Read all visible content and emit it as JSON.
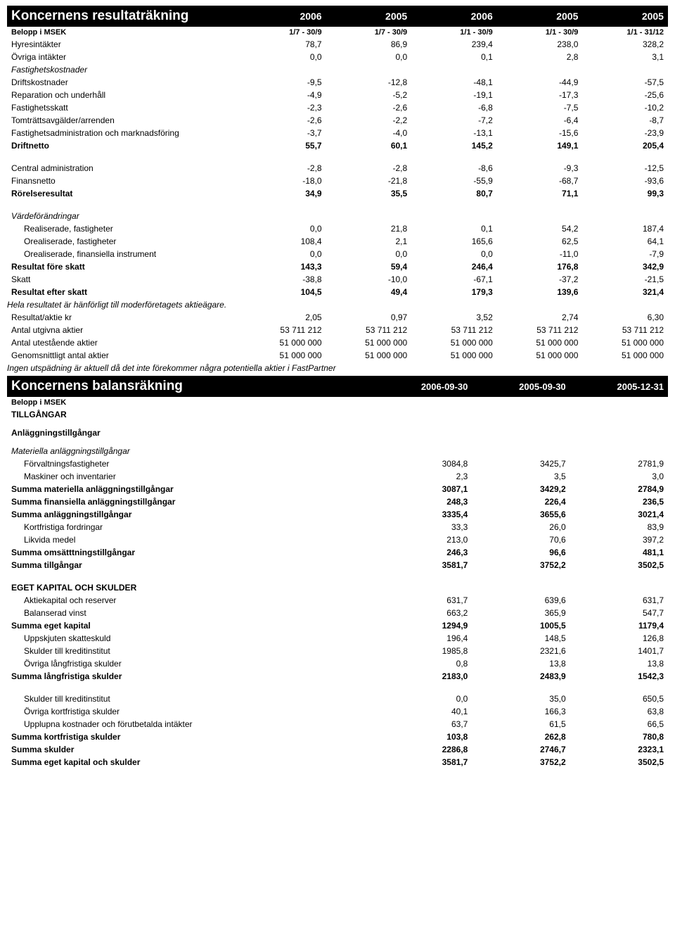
{
  "income": {
    "title": "Koncernens resultaträkning",
    "years": [
      "2006",
      "2005",
      "2006",
      "2005",
      "2005"
    ],
    "periods_label": "Belopp i MSEK",
    "periods": [
      "1/7 - 30/9",
      "1/7 - 30/9",
      "1/1 - 30/9",
      "1/1 - 30/9",
      "1/1 - 31/12"
    ],
    "rows": [
      {
        "label": "Hyresintäkter",
        "v": [
          "78,7",
          "86,9",
          "239,4",
          "238,0",
          "328,2"
        ]
      },
      {
        "label": "Övriga intäkter",
        "v": [
          "0,0",
          "0,0",
          "0,1",
          "2,8",
          "3,1"
        ]
      },
      {
        "label": "Fastighetskostnader",
        "italic": true
      },
      {
        "label": "Driftskostnader",
        "v": [
          "-9,5",
          "-12,8",
          "-48,1",
          "-44,9",
          "-57,5"
        ]
      },
      {
        "label": "Reparation och underhåll",
        "v": [
          "-4,9",
          "-5,2",
          "-19,1",
          "-17,3",
          "-25,6"
        ]
      },
      {
        "label": "Fastighetsskatt",
        "v": [
          "-2,3",
          "-2,6",
          "-6,8",
          "-7,5",
          "-10,2"
        ]
      },
      {
        "label": "Tomträttsavgälder/arrenden",
        "v": [
          "-2,6",
          "-2,2",
          "-7,2",
          "-6,4",
          "-8,7"
        ]
      },
      {
        "label": "Fastighetsadministration och marknadsföring",
        "v": [
          "-3,7",
          "-4,0",
          "-13,1",
          "-15,6",
          "-23,9"
        ]
      },
      {
        "label": "Driftnetto",
        "bold": true,
        "v": [
          "55,7",
          "60,1",
          "145,2",
          "149,1",
          "205,4"
        ]
      },
      {
        "spacer": true
      },
      {
        "label": "Central administration",
        "v": [
          "-2,8",
          "-2,8",
          "-8,6",
          "-9,3",
          "-12,5"
        ]
      },
      {
        "label": "Finansnetto",
        "v": [
          "-18,0",
          "-21,8",
          "-55,9",
          "-68,7",
          "-93,6"
        ]
      },
      {
        "label": "Rörelseresultat",
        "bold": true,
        "v": [
          "34,9",
          "35,5",
          "80,7",
          "71,1",
          "99,3"
        ]
      },
      {
        "spacer": true
      },
      {
        "label": "Värdeförändringar",
        "italic": true
      },
      {
        "label": "Realiserade, fastigheter",
        "indent": true,
        "v": [
          "0,0",
          "21,8",
          "0,1",
          "54,2",
          "187,4"
        ]
      },
      {
        "label": "Orealiserade, fastigheter",
        "indent": true,
        "v": [
          "108,4",
          "2,1",
          "165,6",
          "62,5",
          "64,1"
        ]
      },
      {
        "label": "Orealiserade, finansiella instrument",
        "indent": true,
        "v": [
          "0,0",
          "0,0",
          "0,0",
          "-11,0",
          "-7,9"
        ]
      },
      {
        "label": "Resultat före skatt",
        "bold": true,
        "v": [
          "143,3",
          "59,4",
          "246,4",
          "176,8",
          "342,9"
        ]
      },
      {
        "label": "Skatt",
        "v": [
          "-38,8",
          "-10,0",
          "-67,1",
          "-37,2",
          "-21,5"
        ]
      },
      {
        "label": "Resultat efter skatt",
        "bold": true,
        "v": [
          "104,5",
          "49,4",
          "179,3",
          "139,6",
          "321,4"
        ]
      }
    ],
    "footnote1": "Hela resultatet är hänförligt till moderföretagets aktieägare.",
    "rows2": [
      {
        "label": "Resultat/aktie kr",
        "v": [
          "2,05",
          "0,97",
          "3,52",
          "2,74",
          "6,30"
        ]
      },
      {
        "label": "Antal utgivna aktier",
        "v": [
          "53 711 212",
          "53 711 212",
          "53 711 212",
          "53 711 212",
          "53 711 212"
        ]
      },
      {
        "label": "Antal utestående aktier",
        "v": [
          "51 000 000",
          "51 000 000",
          "51 000 000",
          "51 000 000",
          "51 000 000"
        ]
      },
      {
        "label": "Genomsnittligt antal aktier",
        "v": [
          "51 000 000",
          "51 000 000",
          "51 000 000",
          "51 000 000",
          "51 000 000"
        ]
      }
    ],
    "footnote2": "Ingen utspädning är aktuell då det inte förekommer några potentiella aktier i FastPartner"
  },
  "balance": {
    "title": "Koncernens balansräkning",
    "dates": [
      "2006-09-30",
      "2005-09-30",
      "2005-12-31"
    ],
    "sub_label": "Belopp i MSEK",
    "rows": [
      {
        "label": "TILLGÅNGAR",
        "bold": true
      },
      {
        "spacer_small": true
      },
      {
        "label": "Anläggningstillgångar",
        "bold": true
      },
      {
        "spacer_small": true
      },
      {
        "label": "Materiella anläggningstillgångar",
        "italic": true
      },
      {
        "label": "Förvaltningsfastigheter",
        "indent": true,
        "v": [
          "3084,8",
          "3425,7",
          "2781,9"
        ]
      },
      {
        "label": "Maskiner och inventarier",
        "indent": true,
        "v": [
          "2,3",
          "3,5",
          "3,0"
        ]
      },
      {
        "label": "Summa materiella anläggningstillgångar",
        "bold": true,
        "v": [
          "3087,1",
          "3429,2",
          "2784,9"
        ]
      },
      {
        "label": "Summa finansiella anläggningstillgångar",
        "bold": true,
        "v": [
          "248,3",
          "226,4",
          "236,5"
        ]
      },
      {
        "label": "Summa anläggningstillgångar",
        "bold": true,
        "v": [
          "3335,4",
          "3655,6",
          "3021,4"
        ]
      },
      {
        "label": "Kortfristiga fordringar",
        "indent": true,
        "v": [
          "33,3",
          "26,0",
          "83,9"
        ]
      },
      {
        "label": "Likvida medel",
        "indent": true,
        "v": [
          "213,0",
          "70,6",
          "397,2"
        ]
      },
      {
        "label": "Summa omsätttningstillgångar",
        "bold": true,
        "v": [
          "246,3",
          "96,6",
          "481,1"
        ]
      },
      {
        "label": "Summa tillgångar",
        "bold": true,
        "v": [
          "3581,7",
          "3752,2",
          "3502,5"
        ]
      },
      {
        "spacer": true
      },
      {
        "label": "EGET KAPITAL OCH SKULDER",
        "bold": true
      },
      {
        "label": "Aktiekapital och reserver",
        "indent": true,
        "v": [
          "631,7",
          "639,6",
          "631,7"
        ]
      },
      {
        "label": "Balanserad vinst",
        "indent": true,
        "v": [
          "663,2",
          "365,9",
          "547,7"
        ]
      },
      {
        "label": "Summa eget kapital",
        "bold": true,
        "v": [
          "1294,9",
          "1005,5",
          "1179,4"
        ]
      },
      {
        "label": "Uppskjuten skatteskuld",
        "indent": true,
        "v": [
          "196,4",
          "148,5",
          "126,8"
        ]
      },
      {
        "label": "Skulder till kreditinstitut",
        "indent": true,
        "v": [
          "1985,8",
          "2321,6",
          "1401,7"
        ]
      },
      {
        "label": "Övriga långfristiga skulder",
        "indent": true,
        "v": [
          "0,8",
          "13,8",
          "13,8"
        ]
      },
      {
        "label": "Summa långfristiga skulder",
        "bold": true,
        "v": [
          "2183,0",
          "2483,9",
          "1542,3"
        ]
      },
      {
        "spacer": true
      },
      {
        "label": "Skulder till kreditinstitut",
        "indent": true,
        "v": [
          "0,0",
          "35,0",
          "650,5"
        ]
      },
      {
        "label": "Övriga kortfristiga skulder",
        "indent": true,
        "v": [
          "40,1",
          "166,3",
          "63,8"
        ]
      },
      {
        "label": "Upplupna kostnader och förutbetalda intäkter",
        "indent": true,
        "v": [
          "63,7",
          "61,5",
          "66,5"
        ]
      },
      {
        "label": "Summa kortfristiga skulder",
        "bold": true,
        "v": [
          "103,8",
          "262,8",
          "780,8"
        ]
      },
      {
        "label": "Summa skulder",
        "bold": true,
        "v": [
          "2286,8",
          "2746,7",
          "2323,1"
        ]
      },
      {
        "label": "Summa eget kapital och skulder",
        "bold": true,
        "v": [
          "3581,7",
          "3752,2",
          "3502,5"
        ]
      }
    ]
  }
}
